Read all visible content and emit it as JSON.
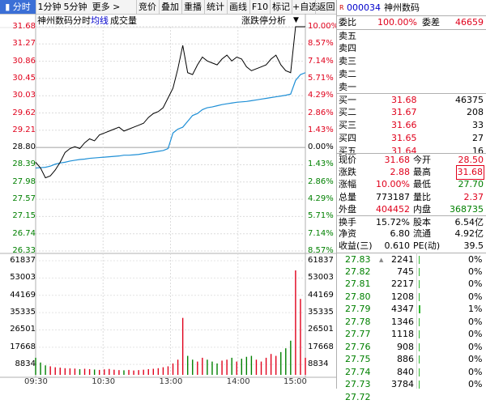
{
  "toolbar": {
    "tabs": [
      "分时",
      "1分钟",
      "5分钟",
      "更多 >"
    ],
    "buttons": [
      "竞价",
      "叠加",
      "重播",
      "统计",
      "画线",
      "F10",
      "标记",
      "+自选",
      "返回"
    ]
  },
  "header": {
    "name": "神州数码",
    "mode": "分时",
    "avg_label": "均线",
    "volume_label": "成交量",
    "analysis": "涨跌停分析",
    "dropdown": "▼"
  },
  "price_axis": {
    "prices": [
      "31.68",
      "31.27",
      "30.86",
      "30.45",
      "30.03",
      "29.62",
      "29.21",
      "28.80",
      "28.39",
      "27.98",
      "27.57",
      "27.15",
      "26.74",
      "26.33"
    ],
    "percents": [
      "10.00%",
      "8.57%",
      "7.14%",
      "5.71%",
      "4.29%",
      "2.86%",
      "1.43%",
      "0.00%",
      "1.43%",
      "2.86%",
      "4.29%",
      "5.71%",
      "7.14%",
      "8.57%"
    ]
  },
  "volume_axis": [
    "61837",
    "53003",
    "44169",
    "35335",
    "26501",
    "17668",
    "8834"
  ],
  "time_axis": [
    "09:30",
    "10:30",
    "13:00",
    "14:00",
    "15:00"
  ],
  "panel": {
    "code_prefix": "R",
    "code": "000034",
    "name": "神州数码",
    "weibi_label": "委比",
    "weibi_value": "100.00%",
    "weicha_label": "委差",
    "weicha_value": "46659",
    "sells": [
      {
        "label": "卖五",
        "price": "",
        "vol": ""
      },
      {
        "label": "卖四",
        "price": "",
        "vol": ""
      },
      {
        "label": "卖三",
        "price": "",
        "vol": ""
      },
      {
        "label": "卖二",
        "price": "",
        "vol": ""
      },
      {
        "label": "卖一",
        "price": "",
        "vol": ""
      }
    ],
    "buys": [
      {
        "label": "买一",
        "price": "31.68",
        "vol": "46375"
      },
      {
        "label": "买二",
        "price": "31.67",
        "vol": "208"
      },
      {
        "label": "买三",
        "price": "31.66",
        "vol": "33"
      },
      {
        "label": "买四",
        "price": "31.65",
        "vol": "27"
      },
      {
        "label": "买五",
        "price": "31.64",
        "vol": "16"
      }
    ],
    "quote": [
      {
        "l1": "现价",
        "v1": "31.68",
        "l2": "今开",
        "v2": "28.50"
      },
      {
        "l1": "涨跌",
        "v1": "2.88",
        "l2": "最高",
        "v2": "31.68"
      },
      {
        "l1": "涨幅",
        "v1": "10.00%",
        "l2": "最低",
        "v2": "27.70"
      },
      {
        "l1": "总量",
        "v1": "773187",
        "l2": "量比",
        "v2": "2.37"
      },
      {
        "l1": "外盘",
        "v1": "404452",
        "l2": "内盘",
        "v2": "368735"
      }
    ],
    "fund": [
      {
        "l1": "换手",
        "v1": "15.72%",
        "l2": "股本",
        "v2": "6.54亿"
      },
      {
        "l1": "净资",
        "v1": "6.80",
        "l2": "流通",
        "v2": "4.92亿"
      },
      {
        "l1": "收益(三)",
        "v1": "0.610",
        "l2": "PE(动)",
        "v2": "39.5"
      }
    ],
    "ticks": [
      {
        "price": "27.83",
        "vol": "2241",
        "pct": "0%",
        "arrow": "▲",
        "frac": 0.01
      },
      {
        "price": "27.82",
        "vol": "745",
        "pct": "0%",
        "arrow": "",
        "frac": 0.005
      },
      {
        "price": "27.81",
        "vol": "2217",
        "pct": "0%",
        "arrow": "",
        "frac": 0.01
      },
      {
        "price": "27.80",
        "vol": "1208",
        "pct": "0%",
        "arrow": "",
        "frac": 0.006
      },
      {
        "price": "27.79",
        "vol": "4347",
        "pct": "1%",
        "arrow": "",
        "frac": 0.04
      },
      {
        "price": "27.78",
        "vol": "1346",
        "pct": "0%",
        "arrow": "",
        "frac": 0.006
      },
      {
        "price": "27.77",
        "vol": "1118",
        "pct": "0%",
        "arrow": "",
        "frac": 0.006
      },
      {
        "price": "27.76",
        "vol": "908",
        "pct": "0%",
        "arrow": "",
        "frac": 0.005
      },
      {
        "price": "27.75",
        "vol": "886",
        "pct": "0%",
        "arrow": "",
        "frac": 0.005
      },
      {
        "price": "27.74",
        "vol": "840",
        "pct": "0%",
        "arrow": "",
        "frac": 0.005
      },
      {
        "price": "27.73",
        "vol": "3784",
        "pct": "0%",
        "arrow": "",
        "frac": 0.015
      },
      {
        "price": "27.72",
        "vol": "",
        "pct": "",
        "arrow": "",
        "frac": 0
      }
    ]
  },
  "colors": {
    "up": "#e0001b",
    "down": "#008000",
    "price_line": "#000000",
    "avg_line": "#1e8fd6",
    "grid": "#d6d6d6"
  },
  "chart_data": {
    "type": "line",
    "x_labels": [
      "09:30",
      "10:30",
      "13:00",
      "14:00",
      "15:00"
    ],
    "ylim": [
      25.92,
      31.68
    ],
    "prev_close": 28.8,
    "series": [
      {
        "values": [
          28.2,
          28.05,
          27.8,
          27.85,
          28.0,
          28.2,
          28.45,
          28.55,
          28.6,
          28.55,
          28.7,
          28.8,
          28.75,
          28.9,
          28.95,
          29.0,
          29.05,
          29.1,
          29.0,
          29.05,
          29.1,
          29.15,
          29.2,
          29.35,
          29.45,
          29.5,
          29.6,
          29.85,
          30.1,
          30.6,
          31.2,
          30.5,
          30.45,
          30.7,
          30.9,
          30.8,
          30.75,
          30.7,
          30.85,
          30.95,
          30.8,
          30.9,
          30.85,
          30.65,
          30.55,
          30.6,
          30.65,
          30.7,
          30.85,
          30.95,
          30.7,
          30.55,
          30.5,
          31.68,
          31.68,
          31.68
        ]
      },
      {
        "values": [
          28.05,
          28.06,
          28.07,
          28.1,
          28.15,
          28.18,
          28.2,
          28.23,
          28.25,
          28.27,
          28.28,
          28.3,
          28.31,
          28.32,
          28.33,
          28.34,
          28.35,
          28.36,
          28.38,
          28.38,
          28.39,
          28.4,
          28.42,
          28.44,
          28.46,
          28.48,
          28.5,
          28.55,
          28.95,
          29.05,
          29.1,
          29.25,
          29.4,
          29.45,
          29.55,
          29.6,
          29.62,
          29.65,
          29.68,
          29.7,
          29.72,
          29.74,
          29.75,
          29.76,
          29.78,
          29.8,
          29.82,
          29.84,
          29.86,
          29.88,
          29.9,
          29.92,
          29.95,
          30.3,
          30.45,
          30.5
        ]
      }
    ],
    "volume": [
      9000,
      6500,
      5000,
      4500,
      4000,
      3800,
      3500,
      3400,
      3300,
      3000,
      3200,
      3000,
      2800,
      2600,
      2900,
      3100,
      2700,
      2500,
      2400,
      2600,
      2300,
      2500,
      2700,
      3000,
      3200,
      3500,
      4000,
      4500,
      6000,
      8000,
      30000,
      10000,
      8000,
      7000,
      9000,
      8000,
      7000,
      6000,
      7500,
      8000,
      9000,
      7000,
      8500,
      9500,
      10000,
      8000,
      7000,
      9000,
      11000,
      10000,
      12000,
      14000,
      18000,
      55000,
      40000,
      9000
    ]
  }
}
